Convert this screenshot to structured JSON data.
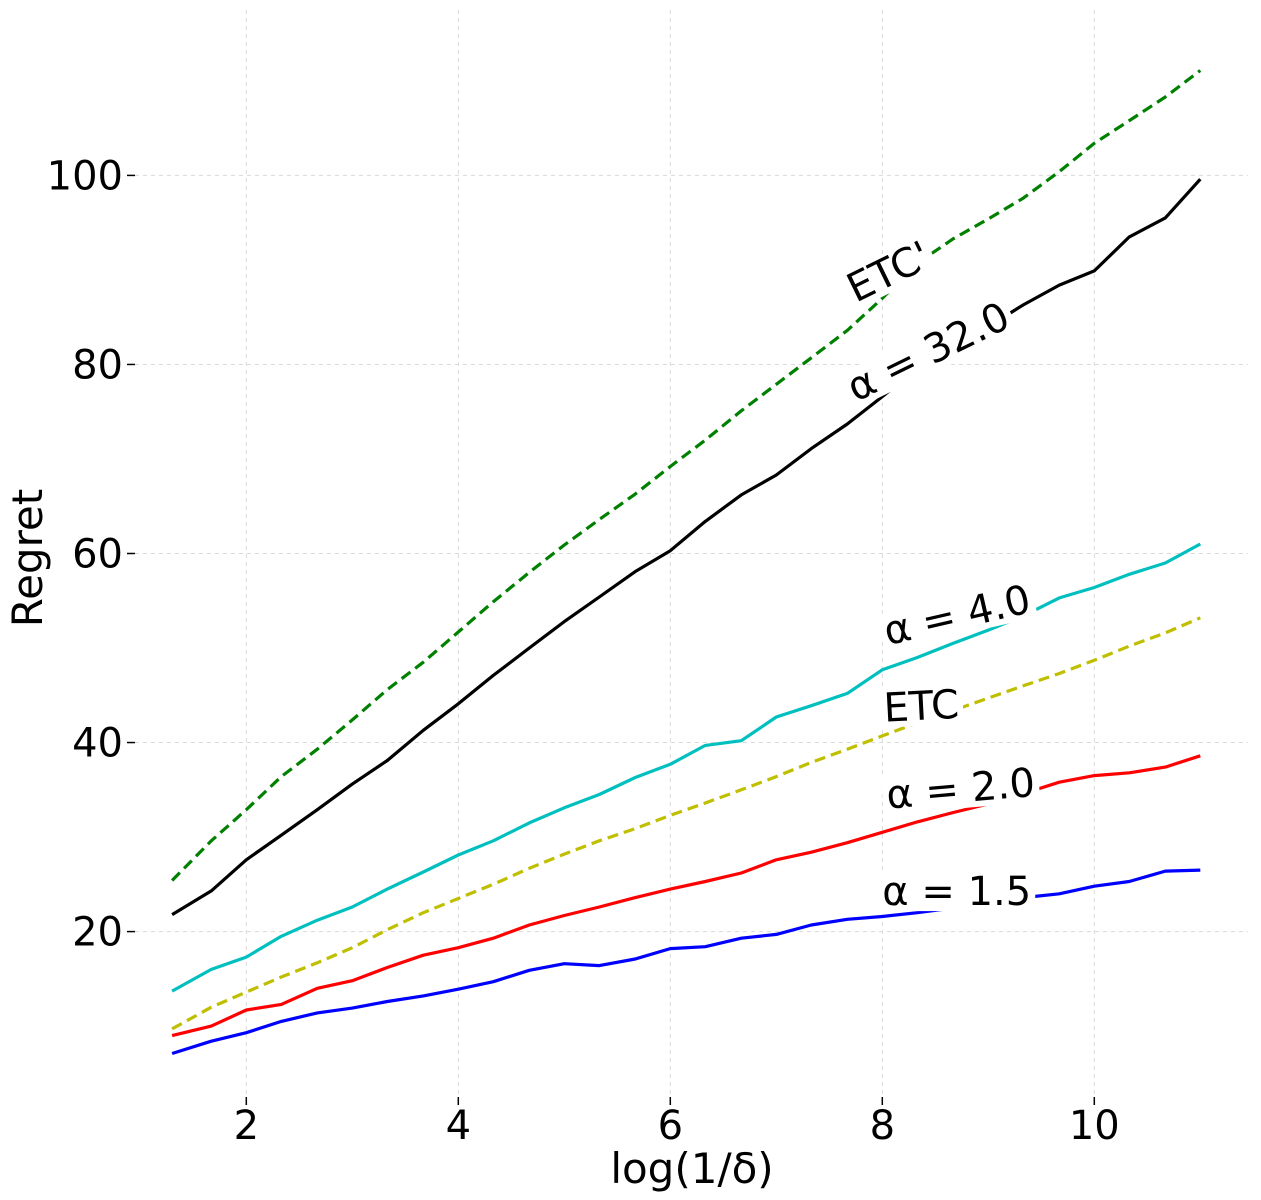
{
  "chart_data": {
    "type": "line",
    "xlabel": "log(1/δ)",
    "ylabel": "Regret",
    "xlim": [
      0.95,
      11.45
    ],
    "ylim": [
      2.5,
      117.5
    ],
    "xticks": [
      2,
      4,
      6,
      8,
      10
    ],
    "yticks": [
      20,
      40,
      60,
      80,
      100
    ],
    "grid": true,
    "x": [
      1.3,
      1.67,
      2.0,
      2.33,
      2.67,
      3.0,
      3.33,
      3.67,
      4.0,
      4.33,
      4.67,
      5.0,
      5.33,
      5.67,
      6.0,
      6.33,
      6.67,
      7.0,
      7.33,
      7.67,
      8.0,
      8.33,
      8.67,
      9.0,
      9.33,
      9.67,
      10.0,
      10.33,
      10.67,
      11.0
    ],
    "series": [
      {
        "name": "ETC'",
        "color": "#008000",
        "dashed": true,
        "label_x": 7.75,
        "label_y": 86.5,
        "label_angle": -26,
        "values": [
          25.4,
          29.6,
          32.9,
          36.4,
          39.3,
          42.4,
          45.6,
          48.5,
          51.7,
          54.9,
          58.0,
          60.9,
          63.6,
          66.3,
          69.2,
          72.0,
          75.1,
          77.9,
          80.7,
          83.6,
          87.0,
          90.7,
          93.3,
          95.4,
          97.6,
          100.4,
          103.4,
          105.8,
          108.3,
          111.1
        ]
      },
      {
        "name": "α = 32.0",
        "color": "#000000",
        "dashed": false,
        "label_x": 7.75,
        "label_y": 76.0,
        "label_angle": -26,
        "values": [
          21.8,
          24.3,
          27.6,
          30.2,
          32.9,
          35.6,
          38.1,
          41.3,
          44.1,
          47.1,
          50.0,
          52.8,
          55.4,
          58.1,
          60.3,
          63.4,
          66.2,
          68.3,
          71.1,
          73.7,
          76.6,
          79.6,
          82.2,
          84.0,
          86.3,
          88.4,
          89.9,
          93.5,
          95.5,
          99.6
        ]
      },
      {
        "name": "α = 4.0",
        "color": "#00bfbf",
        "dashed": false,
        "label_x": 8.05,
        "label_y": 50.3,
        "label_angle": -13,
        "values": [
          13.7,
          16.0,
          17.3,
          19.5,
          21.2,
          22.6,
          24.5,
          26.3,
          28.1,
          29.6,
          31.5,
          33.1,
          34.5,
          36.3,
          37.7,
          39.7,
          40.2,
          42.7,
          43.9,
          45.2,
          47.7,
          49.0,
          50.5,
          51.9,
          53.4,
          55.3,
          56.4,
          57.8,
          59.0,
          61.0
        ]
      },
      {
        "name": "ETC",
        "color": "#bfbf00",
        "dashed": true,
        "label_x": 8.02,
        "label_y": 42.2,
        "label_angle": -3,
        "values": [
          9.7,
          12.0,
          13.6,
          15.2,
          16.7,
          18.3,
          20.2,
          22.0,
          23.5,
          25.0,
          26.7,
          28.2,
          29.6,
          30.9,
          32.3,
          33.6,
          35.0,
          36.4,
          37.9,
          39.3,
          40.7,
          42.1,
          43.4,
          44.7,
          46.0,
          47.3,
          48.7,
          50.2,
          51.6,
          53.2
        ]
      },
      {
        "name": "α = 2.0",
        "color": "#ff0000",
        "dashed": false,
        "label_x": 8.05,
        "label_y": 33.0,
        "label_angle": -5,
        "values": [
          9.0,
          10.0,
          11.7,
          12.3,
          14.0,
          14.8,
          16.2,
          17.5,
          18.3,
          19.3,
          20.7,
          21.7,
          22.6,
          23.6,
          24.5,
          25.3,
          26.2,
          27.6,
          28.4,
          29.4,
          30.5,
          31.6,
          32.6,
          33.5,
          34.6,
          35.8,
          36.5,
          36.8,
          37.4,
          38.6
        ]
      },
      {
        "name": "α = 1.5",
        "color": "#0000ff",
        "dashed": false,
        "label_x": 8.0,
        "label_y": 22.8,
        "label_angle": 0,
        "values": [
          7.1,
          8.4,
          9.3,
          10.5,
          11.4,
          11.9,
          12.6,
          13.2,
          13.9,
          14.7,
          15.9,
          16.6,
          16.4,
          17.1,
          18.2,
          18.4,
          19.3,
          19.7,
          20.7,
          21.3,
          21.6,
          22.0,
          22.5,
          23.0,
          23.6,
          24.0,
          24.8,
          25.3,
          26.4,
          26.5
        ]
      }
    ]
  }
}
